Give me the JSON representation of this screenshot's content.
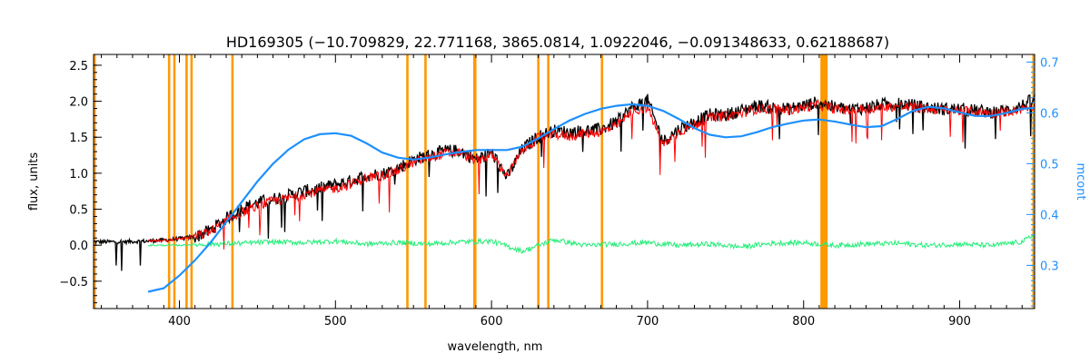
{
  "chart_data": {
    "type": "line",
    "title": "HD169305    (−10.709829, 22.771168, 3865.0814, 1.0922046, −0.091348633, 0.62188687)",
    "xlabel": "wavelength, nm",
    "ylabel": "flux, units",
    "y2label": "mcont",
    "xlim": [
      345,
      948
    ],
    "ylim": [
      -0.88,
      2.65
    ],
    "y2lim": [
      0.215,
      0.715
    ],
    "grid": false,
    "x_ticks": [
      400,
      500,
      600,
      700,
      800,
      900
    ],
    "y_ticks": [
      -0.5,
      0.0,
      0.5,
      1.0,
      1.5,
      2.0,
      2.5
    ],
    "y2_ticks": [
      0.3,
      0.4,
      0.5,
      0.6,
      0.7
    ],
    "x_tick_labels": [
      "400",
      "500",
      "600",
      "700",
      "800",
      "900"
    ],
    "y_tick_labels": [
      "−0.5",
      "0.0",
      "0.5",
      "1.0",
      "1.5",
      "2.0",
      "2.5"
    ],
    "y2_tick_labels": [
      "0.3",
      "0.4",
      "0.5",
      "0.6",
      "0.7"
    ],
    "masked_lines_nm": [
      393.4,
      396.8,
      404.6,
      407.8,
      434.0,
      546.1,
      557.7,
      589.0,
      589.6,
      630.0,
      636.4,
      670.8,
      811.5,
      812.3,
      813.0,
      813.8,
      814.6
    ],
    "series": [
      {
        "role": "observed",
        "color": "#000000",
        "x": [
          345,
          360,
          380,
          395,
          410,
          420,
          430,
          440,
          450,
          460,
          470,
          480,
          490,
          500,
          510,
          520,
          530,
          540,
          550,
          560,
          570,
          580,
          590,
          600,
          610,
          620,
          630,
          640,
          650,
          660,
          670,
          680,
          690,
          700,
          710,
          720,
          730,
          740,
          750,
          760,
          770,
          780,
          790,
          800,
          810,
          820,
          830,
          840,
          850,
          860,
          870,
          880,
          890,
          900,
          910,
          920,
          930,
          940,
          948
        ],
        "y": [
          0.05,
          0.05,
          0.06,
          0.08,
          0.12,
          0.22,
          0.38,
          0.52,
          0.6,
          0.65,
          0.7,
          0.76,
          0.8,
          0.85,
          0.9,
          0.98,
          1.0,
          1.08,
          1.2,
          1.26,
          1.32,
          1.32,
          1.2,
          1.3,
          0.95,
          1.35,
          1.52,
          1.6,
          1.58,
          1.6,
          1.62,
          1.72,
          1.92,
          2.02,
          1.45,
          1.62,
          1.72,
          1.82,
          1.82,
          1.88,
          1.95,
          1.92,
          1.9,
          1.95,
          2.0,
          1.92,
          1.9,
          1.92,
          1.96,
          1.98,
          1.95,
          1.92,
          1.9,
          1.9,
          1.88,
          1.86,
          1.88,
          1.95,
          2.05
        ]
      },
      {
        "role": "model",
        "color": "#ff0000",
        "x": [
          380,
          395,
          410,
          420,
          430,
          440,
          450,
          460,
          470,
          480,
          490,
          500,
          510,
          520,
          530,
          540,
          550,
          560,
          570,
          580,
          590,
          600,
          610,
          620,
          630,
          640,
          650,
          660,
          670,
          680,
          690,
          700,
          710,
          720,
          730,
          740,
          750,
          760,
          770,
          780,
          790,
          800,
          810,
          820,
          830,
          840,
          850,
          860,
          870,
          880,
          890,
          900,
          910,
          920,
          930,
          940,
          948
        ],
        "y": [
          0.06,
          0.08,
          0.12,
          0.2,
          0.34,
          0.46,
          0.55,
          0.62,
          0.66,
          0.72,
          0.76,
          0.8,
          0.86,
          0.94,
          0.98,
          1.04,
          1.16,
          1.22,
          1.28,
          1.3,
          1.18,
          1.26,
          0.98,
          1.32,
          1.5,
          1.55,
          1.52,
          1.56,
          1.58,
          1.66,
          1.86,
          1.92,
          1.4,
          1.58,
          1.68,
          1.78,
          1.8,
          1.84,
          1.9,
          1.9,
          1.88,
          1.92,
          1.96,
          1.9,
          1.88,
          1.9,
          1.92,
          1.94,
          1.92,
          1.9,
          1.88,
          1.88,
          1.86,
          1.84,
          1.86,
          1.9,
          1.95
        ]
      },
      {
        "role": "residual",
        "color": "#22ee77",
        "x": [
          380,
          400,
          420,
          440,
          460,
          480,
          500,
          520,
          540,
          560,
          580,
          600,
          620,
          640,
          660,
          680,
          700,
          720,
          740,
          760,
          780,
          800,
          820,
          840,
          860,
          880,
          900,
          920,
          940,
          948
        ],
        "y": [
          0.0,
          0.0,
          0.02,
          0.03,
          0.05,
          0.04,
          0.06,
          0.02,
          0.04,
          0.02,
          0.05,
          0.06,
          -0.08,
          0.08,
          0.0,
          0.02,
          0.04,
          0.0,
          0.02,
          -0.02,
          0.03,
          0.04,
          0.0,
          0.02,
          0.03,
          0.0,
          0.02,
          0.0,
          0.05,
          0.15
        ]
      },
      {
        "role": "mcont",
        "axis": "y2",
        "color": "#1e90ff",
        "x": [
          380,
          390,
          400,
          410,
          420,
          430,
          440,
          450,
          460,
          470,
          480,
          490,
          500,
          510,
          520,
          530,
          540,
          550,
          560,
          570,
          580,
          590,
          600,
          610,
          620,
          630,
          640,
          650,
          660,
          670,
          680,
          690,
          700,
          710,
          720,
          730,
          740,
          750,
          760,
          770,
          780,
          790,
          800,
          810,
          820,
          830,
          840,
          850,
          860,
          870,
          880,
          890,
          900,
          910,
          920,
          930,
          940,
          948
        ],
        "y": [
          0.248,
          0.255,
          0.28,
          0.31,
          0.345,
          0.385,
          0.425,
          0.465,
          0.5,
          0.528,
          0.548,
          0.558,
          0.56,
          0.555,
          0.54,
          0.522,
          0.512,
          0.508,
          0.512,
          0.518,
          0.523,
          0.527,
          0.527,
          0.527,
          0.534,
          0.55,
          0.568,
          0.585,
          0.598,
          0.608,
          0.614,
          0.617,
          0.614,
          0.604,
          0.588,
          0.57,
          0.557,
          0.552,
          0.554,
          0.562,
          0.572,
          0.579,
          0.585,
          0.587,
          0.583,
          0.577,
          0.572,
          0.574,
          0.588,
          0.604,
          0.612,
          0.609,
          0.601,
          0.594,
          0.594,
          0.6,
          0.608,
          0.61
        ]
      }
    ]
  }
}
